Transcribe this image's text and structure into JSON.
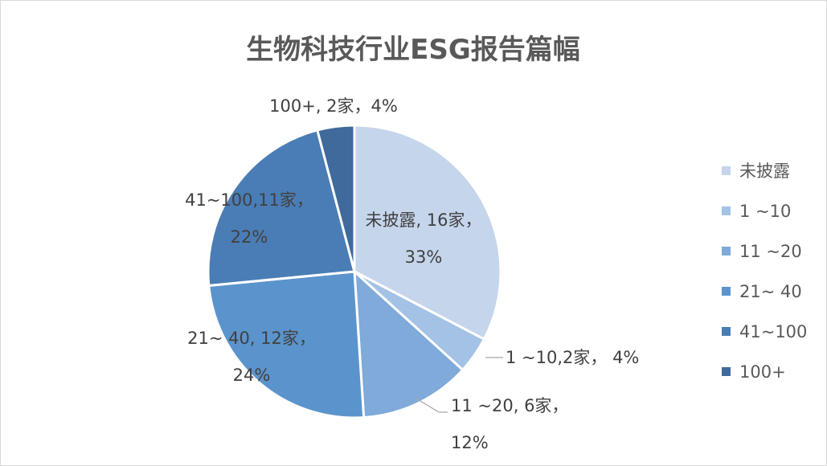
{
  "chart_data": {
    "type": "pie",
    "title": "生物科技行业ESG报告篇幅",
    "categories": [
      "未披露",
      "1 ~10",
      "11 ~20",
      "21~ 40",
      "41~100",
      "100+"
    ],
    "values": [
      16,
      2,
      6,
      12,
      11,
      2
    ],
    "percents": [
      "33%",
      "4%",
      "12%",
      "24%",
      "22%",
      "4%"
    ],
    "colors": [
      "#c5d5ec",
      "#a4c2e6",
      "#7faad9",
      "#5b94cc",
      "#4a7db5",
      "#3f6a9b"
    ],
    "data_labels": [
      [
        "未披露, 16家，",
        "33%"
      ],
      [
        "1 ~10,2家， 4%"
      ],
      [
        "11 ~20, 6家，",
        "12%"
      ],
      [
        "21~ 40, 12家，",
        "24%"
      ],
      [
        "41~100,11家，",
        "22%"
      ],
      [
        "100+, 2家，4%"
      ]
    ],
    "legend": {
      "position": "right",
      "items": [
        "未披露",
        "1 ~10",
        "11 ~20",
        "21~ 40",
        "41~100",
        "100+"
      ]
    }
  }
}
